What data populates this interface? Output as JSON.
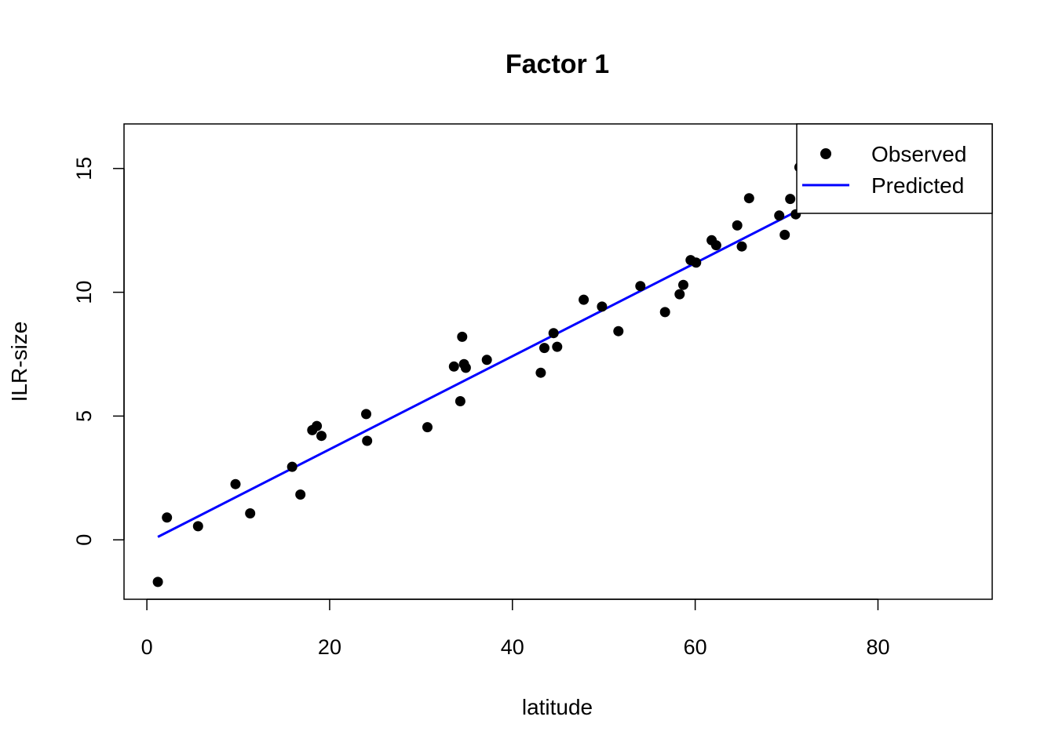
{
  "chart_data": {
    "type": "scatter",
    "title": "Factor 1",
    "xlabel": "latitude",
    "ylabel": "ILR-size",
    "xlim": [
      -2.5,
      92.5
    ],
    "ylim": [
      -2.4,
      16.8
    ],
    "x_ticks": [
      0,
      20,
      40,
      60,
      80
    ],
    "y_ticks": [
      0,
      5,
      10,
      15
    ],
    "x_tick_labels": [
      "0",
      "20",
      "40",
      "60",
      "80"
    ],
    "y_tick_labels": [
      "0",
      "5",
      "10",
      "15"
    ],
    "grid": false,
    "legend_position": "top-right",
    "legend": [
      {
        "label": "Observed",
        "marker": "filled-circle",
        "color": "#000000"
      },
      {
        "label": "Predicted",
        "marker": "line",
        "color": "#0000ff"
      }
    ],
    "series": [
      {
        "name": "Observed",
        "kind": "points",
        "color": "#000000",
        "points": [
          [
            1.2,
            -1.7
          ],
          [
            2.2,
            0.9
          ],
          [
            5.6,
            0.55
          ],
          [
            9.7,
            2.25
          ],
          [
            11.3,
            1.07
          ],
          [
            15.9,
            2.95
          ],
          [
            16.8,
            1.83
          ],
          [
            18.1,
            4.43
          ],
          [
            18.6,
            4.6
          ],
          [
            19.1,
            4.2
          ],
          [
            24.0,
            5.08
          ],
          [
            24.1,
            4.0
          ],
          [
            30.7,
            4.55
          ],
          [
            33.6,
            7.0
          ],
          [
            34.3,
            5.6
          ],
          [
            34.5,
            8.2
          ],
          [
            34.7,
            7.1
          ],
          [
            34.9,
            6.95
          ],
          [
            37.2,
            7.27
          ],
          [
            43.1,
            6.75
          ],
          [
            43.5,
            7.75
          ],
          [
            44.5,
            8.35
          ],
          [
            44.9,
            7.8
          ],
          [
            47.8,
            9.7
          ],
          [
            49.8,
            9.42
          ],
          [
            51.6,
            8.43
          ],
          [
            54.0,
            10.25
          ],
          [
            56.7,
            9.2
          ],
          [
            58.3,
            9.92
          ],
          [
            58.7,
            10.3
          ],
          [
            59.5,
            11.3
          ],
          [
            60.1,
            11.2
          ],
          [
            61.8,
            12.1
          ],
          [
            62.3,
            11.9
          ],
          [
            64.6,
            12.7
          ],
          [
            65.1,
            11.85
          ],
          [
            65.9,
            13.8
          ],
          [
            69.2,
            13.1
          ],
          [
            69.8,
            12.32
          ],
          [
            70.4,
            13.77
          ],
          [
            71.0,
            13.15
          ],
          [
            71.4,
            15.05
          ]
        ]
      },
      {
        "name": "Predicted",
        "kind": "line",
        "color": "#0000ff",
        "points": [
          [
            1.2,
            0.12
          ],
          [
            71.8,
            13.4
          ]
        ]
      }
    ]
  }
}
